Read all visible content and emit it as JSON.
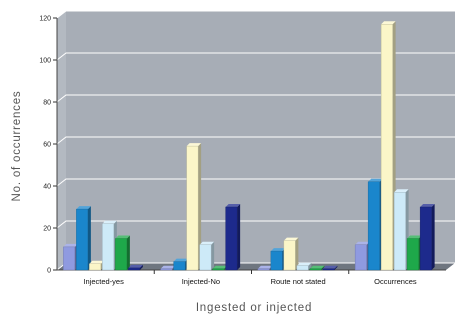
{
  "chart_data": {
    "type": "bar",
    "style": "3d",
    "xlabel": "Ingested or injected",
    "ylabel": "No. of occurrences",
    "ylim": [
      0,
      120
    ],
    "yticks": [
      0,
      20,
      40,
      60,
      80,
      100,
      120
    ],
    "grid": true,
    "legend": "none",
    "categories": [
      "Injected-yes",
      "Injected-No",
      "Route not stated",
      "Occurrences"
    ],
    "series": [
      {
        "color": "#8f9ae0",
        "values": [
          11,
          0,
          0,
          12
        ]
      },
      {
        "color": "#1a86cc",
        "values": [
          29,
          4,
          9,
          42
        ]
      },
      {
        "color": "#fbf6c8",
        "values": [
          3,
          59,
          14,
          117
        ]
      },
      {
        "color": "#cdeaf8",
        "values": [
          22,
          12,
          2,
          37
        ]
      },
      {
        "color": "#1ea84a",
        "values": [
          15,
          0,
          0,
          15
        ]
      },
      {
        "color": "#1d2a8c",
        "values": [
          1,
          30,
          0,
          30
        ]
      }
    ],
    "colors": {
      "plot_back": "#a7adb6",
      "plot_wall": "#b3b9c1",
      "floor": "#6f7680",
      "grid": "#ffffff"
    }
  }
}
